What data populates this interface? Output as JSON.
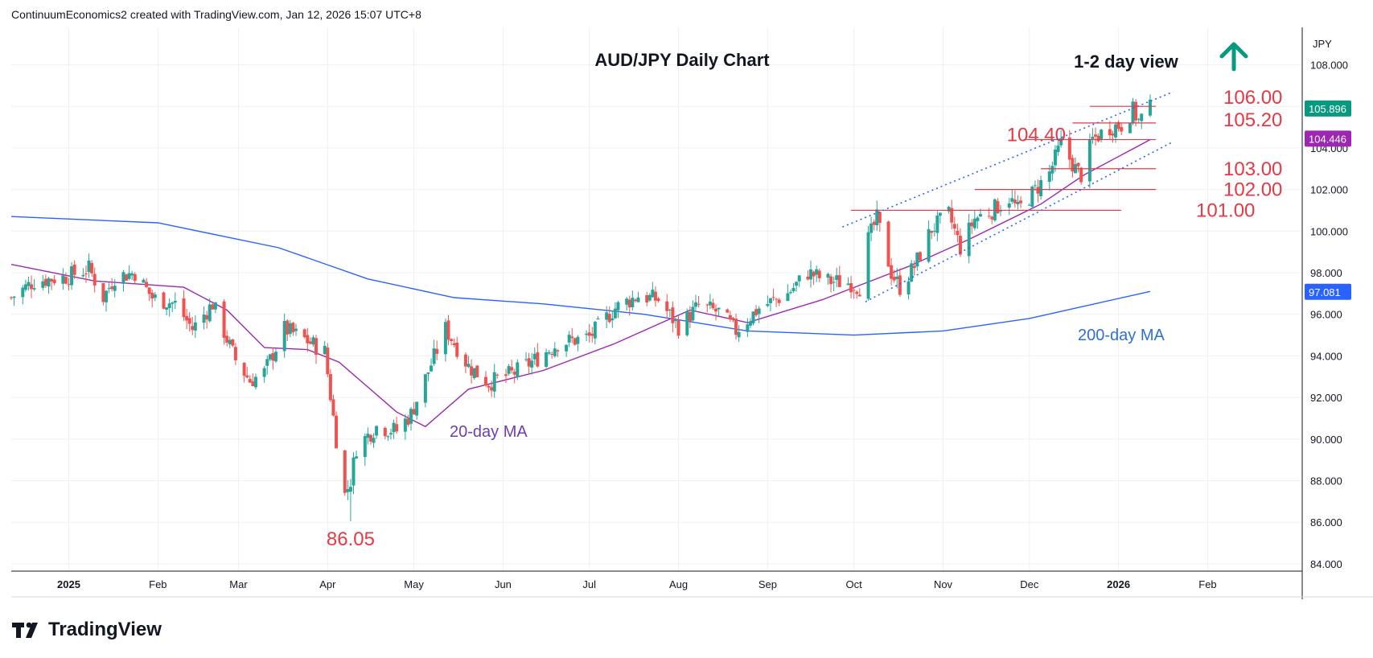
{
  "header": {
    "credit": "ContinuumEconomics2 created with TradingView.com, Jan 12, 2026 15:07 UTC+8"
  },
  "footer": {
    "brand": "TradingView"
  },
  "colors": {
    "up": "#26a69a",
    "down": "#ef5350",
    "ma20": "#9c27b0",
    "ma200": "#2962ff",
    "levels": "#e53945",
    "arrow": "#089981",
    "grid": "#eef0f3",
    "channel": "#2962ff"
  },
  "chart_data": {
    "type": "candlestick",
    "title": "AUD/JPY Daily Chart",
    "view_label": "1-2 day view",
    "view_direction": "up",
    "currency": "JPY",
    "y_range": [
      84,
      110
    ],
    "y_ticks": [
      "108.000",
      "106.000",
      "104.000",
      "102.000",
      "100.000",
      "98.000",
      "96.000",
      "94.000",
      "92.000",
      "90.000",
      "88.000",
      "86.000",
      "84.000"
    ],
    "x_range": [
      "2024-12-12",
      "2026-02-28"
    ],
    "x_ticks": [
      {
        "label": "2025",
        "date": "2025-01-01",
        "bold": true
      },
      {
        "label": "Feb",
        "date": "2025-02-01"
      },
      {
        "label": "Mar",
        "date": "2025-03-01"
      },
      {
        "label": "Apr",
        "date": "2025-04-01"
      },
      {
        "label": "May",
        "date": "2025-05-01"
      },
      {
        "label": "Jun",
        "date": "2025-06-01"
      },
      {
        "label": "Jul",
        "date": "2025-07-01"
      },
      {
        "label": "Aug",
        "date": "2025-08-01"
      },
      {
        "label": "Sep",
        "date": "2025-09-01"
      },
      {
        "label": "Oct",
        "date": "2025-10-01"
      },
      {
        "label": "Nov",
        "date": "2025-11-01"
      },
      {
        "label": "Dec",
        "date": "2025-12-01"
      },
      {
        "label": "2026",
        "date": "2026-01-01",
        "bold": true
      },
      {
        "label": "Feb",
        "date": "2026-02-01"
      }
    ],
    "price_path": [
      [
        "2024-12-12",
        96.8
      ],
      [
        "2024-12-20",
        97.6
      ],
      [
        "2024-12-31",
        97.8
      ],
      [
        "2025-01-08",
        98.2
      ],
      [
        "2025-01-13",
        96.8
      ],
      [
        "2025-01-17",
        97.8
      ],
      [
        "2025-01-24",
        98.0
      ],
      [
        "2025-01-30",
        96.8
      ],
      [
        "2025-02-07",
        96.5
      ],
      [
        "2025-02-13",
        95.3
      ],
      [
        "2025-02-20",
        96.5
      ],
      [
        "2025-02-28",
        93.8
      ],
      [
        "2025-03-05",
        92.8
      ],
      [
        "2025-03-10",
        93.2
      ],
      [
        "2025-03-17",
        95.3
      ],
      [
        "2025-03-24",
        94.8
      ],
      [
        "2025-03-31",
        94.2
      ],
      [
        "2025-04-04",
        90.0
      ],
      [
        "2025-04-07",
        87.3
      ],
      [
        "2025-04-09",
        88.0
      ],
      [
        "2025-04-11",
        89.6
      ],
      [
        "2025-04-18",
        90.6
      ],
      [
        "2025-04-25",
        90.4
      ],
      [
        "2025-04-30",
        91.2
      ],
      [
        "2025-05-07",
        93.6
      ],
      [
        "2025-05-12",
        95.3
      ],
      [
        "2025-05-20",
        93.5
      ],
      [
        "2025-05-27",
        92.7
      ],
      [
        "2025-06-05",
        93.2
      ],
      [
        "2025-06-12",
        93.8
      ],
      [
        "2025-06-20",
        94.6
      ],
      [
        "2025-07-01",
        94.9
      ],
      [
        "2025-07-10",
        96.3
      ],
      [
        "2025-07-18",
        96.9
      ],
      [
        "2025-07-25",
        96.7
      ],
      [
        "2025-08-01",
        95.4
      ],
      [
        "2025-08-08",
        96.4
      ],
      [
        "2025-08-15",
        96.1
      ],
      [
        "2025-08-21",
        95.2
      ],
      [
        "2025-08-29",
        96.3
      ],
      [
        "2025-09-08",
        97.0
      ],
      [
        "2025-09-15",
        98.0
      ],
      [
        "2025-09-22",
        97.6
      ],
      [
        "2025-09-30",
        97.5
      ],
      [
        "2025-10-03",
        97.3
      ],
      [
        "2025-10-06",
        99.6
      ],
      [
        "2025-10-09",
        100.6
      ],
      [
        "2025-10-14",
        98.0
      ],
      [
        "2025-10-17",
        97.3
      ],
      [
        "2025-10-22",
        98.3
      ],
      [
        "2025-10-28",
        100.1
      ],
      [
        "2025-11-03",
        100.8
      ],
      [
        "2025-11-07",
        99.2
      ],
      [
        "2025-11-12",
        100.6
      ],
      [
        "2025-11-18",
        101.0
      ],
      [
        "2025-11-24",
        101.6
      ],
      [
        "2025-11-27",
        101.0
      ],
      [
        "2025-12-02",
        101.8
      ],
      [
        "2025-12-08",
        102.8
      ],
      [
        "2025-12-12",
        104.2
      ],
      [
        "2025-12-17",
        103.0
      ],
      [
        "2025-12-19",
        102.7
      ],
      [
        "2025-12-23",
        104.4
      ],
      [
        "2025-12-29",
        105.0
      ],
      [
        "2026-01-02",
        105.1
      ],
      [
        "2026-01-06",
        105.8
      ],
      [
        "2026-01-08",
        105.3
      ],
      [
        "2026-01-12",
        105.9
      ]
    ],
    "ma20_path": [
      [
        "2024-12-12",
        98.4
      ],
      [
        "2025-01-10",
        97.6
      ],
      [
        "2025-02-10",
        97.3
      ],
      [
        "2025-02-25",
        96.2
      ],
      [
        "2025-03-10",
        94.4
      ],
      [
        "2025-03-25",
        94.3
      ],
      [
        "2025-04-05",
        93.7
      ],
      [
        "2025-04-25",
        91.3
      ],
      [
        "2025-05-05",
        90.6
      ],
      [
        "2025-05-20",
        92.4
      ],
      [
        "2025-06-15",
        93.3
      ],
      [
        "2025-07-10",
        94.6
      ],
      [
        "2025-08-05",
        96.2
      ],
      [
        "2025-08-25",
        95.6
      ],
      [
        "2025-09-20",
        96.7
      ],
      [
        "2025-10-05",
        97.5
      ],
      [
        "2025-10-20",
        98.3
      ],
      [
        "2025-11-10",
        99.6
      ],
      [
        "2025-12-05",
        101.3
      ],
      [
        "2025-12-20",
        102.7
      ],
      [
        "2026-01-12",
        104.4
      ]
    ],
    "ma200_path": [
      [
        "2024-12-12",
        100.7
      ],
      [
        "2025-02-01",
        100.4
      ],
      [
        "2025-03-15",
        99.2
      ],
      [
        "2025-04-15",
        97.7
      ],
      [
        "2025-05-15",
        96.8
      ],
      [
        "2025-06-15",
        96.5
      ],
      [
        "2025-07-20",
        96.0
      ],
      [
        "2025-08-25",
        95.2
      ],
      [
        "2025-10-01",
        95.0
      ],
      [
        "2025-11-01",
        95.2
      ],
      [
        "2025-12-01",
        95.8
      ],
      [
        "2026-01-12",
        97.1
      ]
    ],
    "levels": [
      {
        "label": "106.00",
        "value": 106.0,
        "from": "2025-12-22",
        "to": "2026-01-14"
      },
      {
        "label": "105.20",
        "value": 105.2,
        "from": "2025-12-16",
        "to": "2026-01-14"
      },
      {
        "label": "104.40",
        "value": 104.4,
        "from": "2025-11-29",
        "to": "2026-01-14"
      },
      {
        "label": "103.00",
        "value": 103.0,
        "from": "2025-12-05",
        "to": "2026-01-14"
      },
      {
        "label": "102.00",
        "value": 102.0,
        "from": "2025-11-12",
        "to": "2026-01-14"
      },
      {
        "label": "101.00",
        "value": 101.0,
        "from": "2025-09-30",
        "to": "2026-01-02"
      }
    ],
    "channel": {
      "upper": [
        [
          "2025-09-27",
          100.2
        ],
        [
          "2026-01-20",
          106.7
        ]
      ],
      "lower": [
        [
          "2025-10-05",
          96.6
        ],
        [
          "2026-01-20",
          104.3
        ]
      ]
    },
    "low_annotation": {
      "label": "86.05",
      "value": 86.05,
      "date": "2025-04-09"
    },
    "ma20_label": "20-day MA",
    "ma200_label": "200-day MA",
    "last_price": {
      "label": "105.896",
      "value": 105.896
    },
    "ma20_value": {
      "label": "104.446",
      "value": 104.446
    },
    "ma200_value": {
      "label": "97.081",
      "value": 97.081
    }
  }
}
